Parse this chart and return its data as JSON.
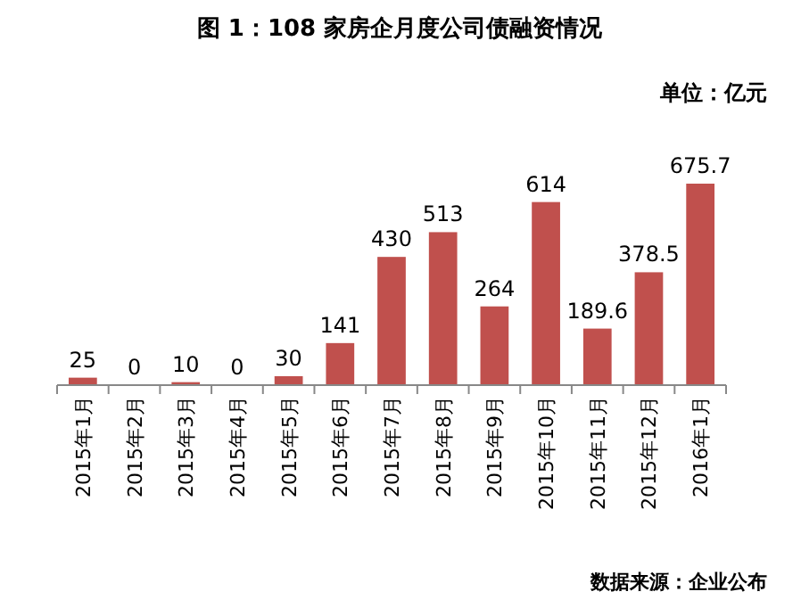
{
  "chart_data": {
    "type": "bar",
    "title": "图 1：108 家房企月度公司债融资情况",
    "annotations": [
      "单位：亿元",
      "数据来源：企业公布"
    ],
    "categories": [
      "2015年1月",
      "2015年2月",
      "2015年3月",
      "2015年4月",
      "2015年5月",
      "2015年6月",
      "2015年7月",
      "2015年8月",
      "2015年9月",
      "2015年10月",
      "2015年11月",
      "2015年12月",
      "2016年1月"
    ],
    "values": [
      25,
      0,
      10,
      0,
      30,
      141,
      430,
      513,
      264,
      614,
      189.6,
      378.5,
      675.7
    ],
    "color": "#c0504d",
    "data_labels": true
  }
}
